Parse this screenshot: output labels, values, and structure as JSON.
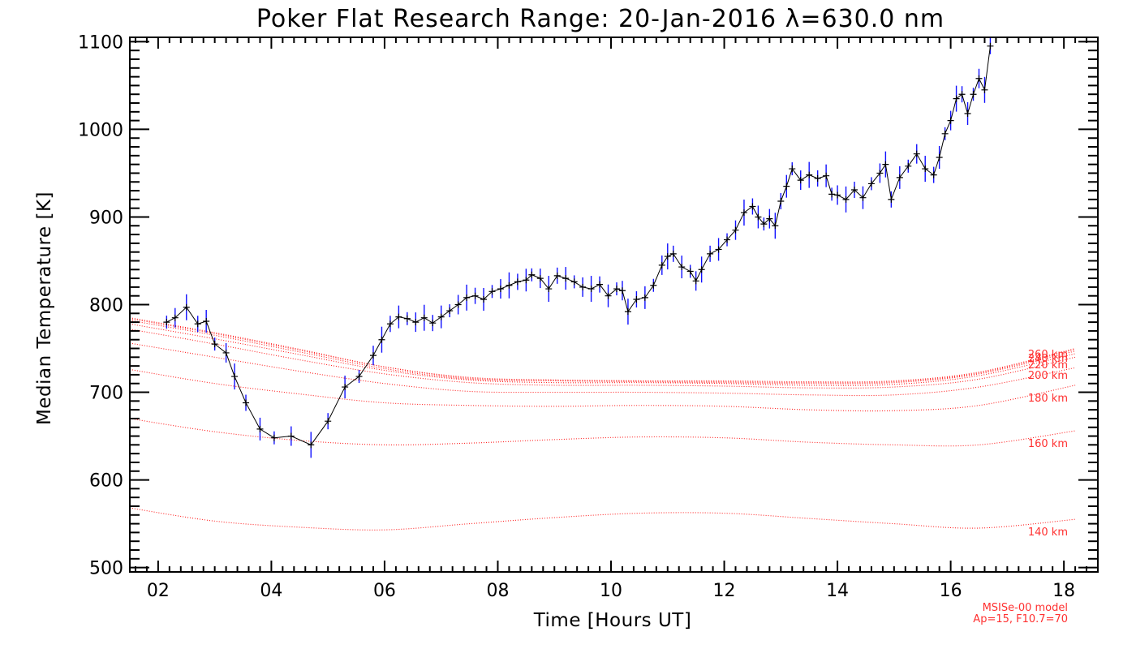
{
  "chart_data": {
    "type": "line",
    "title": "Poker Flat Research Range: 20-Jan-2016 λ=630.0 nm",
    "xlabel": "Time [Hours UT]",
    "ylabel": "Median Temperature [K]",
    "xlim": [
      1.5,
      18.6
    ],
    "ylim": [
      495,
      1105
    ],
    "xticks": [
      2,
      4,
      6,
      8,
      10,
      12,
      14,
      16,
      18
    ],
    "xtick_labels": [
      "02",
      "04",
      "06",
      "08",
      "10",
      "12",
      "14",
      "16",
      "18"
    ],
    "yticks": [
      500,
      600,
      700,
      800,
      900,
      1000,
      1100
    ],
    "ytick_labels": [
      "500",
      "600",
      "700",
      "800",
      "900",
      "1000",
      "1100"
    ],
    "grid": false,
    "colors": {
      "data_line": "#000000",
      "error_bars": "#1010ff",
      "model": "#ff2020"
    },
    "series": [
      {
        "marker": "+",
        "x": [
          2.15,
          2.3,
          2.5,
          2.7,
          2.85,
          3.0,
          3.2,
          3.35,
          3.55,
          3.8,
          4.05,
          4.35,
          4.7,
          5.0,
          5.3,
          5.55,
          5.8,
          5.95,
          6.1,
          6.25,
          6.4,
          6.55,
          6.7,
          6.85,
          7.0,
          7.15,
          7.3,
          7.45,
          7.6,
          7.75,
          7.9,
          8.05,
          8.2,
          8.35,
          8.5,
          8.6,
          8.75,
          8.9,
          9.05,
          9.2,
          9.35,
          9.5,
          9.65,
          9.8,
          9.95,
          10.1,
          10.2,
          10.3,
          10.45,
          10.6,
          10.75,
          10.9,
          11.0,
          11.1,
          11.25,
          11.4,
          11.5,
          11.6,
          11.75,
          11.9,
          12.05,
          12.2,
          12.35,
          12.5,
          12.6,
          12.7,
          12.8,
          12.9,
          13.0,
          13.1,
          13.2,
          13.35,
          13.5,
          13.65,
          13.8,
          13.9,
          14.0,
          14.15,
          14.3,
          14.45,
          14.6,
          14.75,
          14.85,
          14.95,
          15.1,
          15.25,
          15.4,
          15.55,
          15.7,
          15.8,
          15.9,
          16.0,
          16.1,
          16.2,
          16.3,
          16.4,
          16.5,
          16.6,
          16.7
        ],
        "y": [
          780,
          785,
          797,
          778,
          781,
          755,
          745,
          718,
          688,
          658,
          648,
          650,
          640,
          667,
          706,
          718,
          742,
          760,
          778,
          786,
          784,
          780,
          785,
          779,
          786,
          793,
          800,
          808,
          810,
          806,
          815,
          818,
          822,
          826,
          828,
          834,
          830,
          818,
          833,
          830,
          826,
          820,
          818,
          823,
          810,
          818,
          816,
          792,
          806,
          808,
          822,
          845,
          855,
          858,
          843,
          838,
          827,
          840,
          858,
          863,
          874,
          885,
          905,
          912,
          900,
          892,
          898,
          890,
          918,
          935,
          955,
          942,
          948,
          944,
          947,
          926,
          925,
          920,
          931,
          922,
          938,
          950,
          960,
          920,
          945,
          958,
          972,
          955,
          948,
          968,
          995,
          1010,
          1035,
          1040,
          1018,
          1040,
          1058,
          1045,
          1095
        ]
      }
    ],
    "model_curves": {
      "name": "MSISe-00 model",
      "params": "Ap=15, F10.7=70",
      "x": [
        1.5,
        3.0,
        4.5,
        6.0,
        7.5,
        9.0,
        10.5,
        12.0,
        13.5,
        15.0,
        16.5,
        18.2
      ],
      "curves": [
        {
          "label": "140 km",
          "y": [
            568,
            553,
            546,
            543,
            550,
            557,
            562,
            562,
            556,
            550,
            545,
            555
          ]
        },
        {
          "label": "160 km",
          "y": [
            670,
            655,
            645,
            640,
            642,
            646,
            649,
            648,
            643,
            640,
            640,
            656
          ]
        },
        {
          "label": "180 km",
          "y": [
            726,
            710,
            698,
            688,
            685,
            684,
            685,
            684,
            680,
            679,
            685,
            708
          ]
        },
        {
          "label": "200 km",
          "y": [
            756,
            740,
            724,
            710,
            701,
            700,
            700,
            699,
            697,
            697,
            706,
            728
          ]
        },
        {
          "label": "220 km",
          "y": [
            772,
            755,
            737,
            721,
            711,
            708,
            708,
            707,
            705,
            706,
            715,
            740
          ]
        },
        {
          "label": "240 km",
          "y": [
            778,
            761,
            743,
            725,
            714,
            711,
            711,
            710,
            708,
            709,
            719,
            744
          ]
        },
        {
          "label": "260 km",
          "y": [
            782,
            765,
            746,
            727,
            715,
            713,
            712,
            711,
            710,
            711,
            721,
            747
          ]
        },
        {
          "label": "",
          "y": [
            784,
            767,
            748,
            729,
            716,
            714,
            713,
            712,
            711,
            712,
            722,
            749
          ]
        },
        {
          "label": "",
          "y": [
            785,
            768,
            749,
            729,
            717,
            714,
            713,
            713,
            712,
            713,
            723,
            750
          ]
        }
      ]
    }
  }
}
